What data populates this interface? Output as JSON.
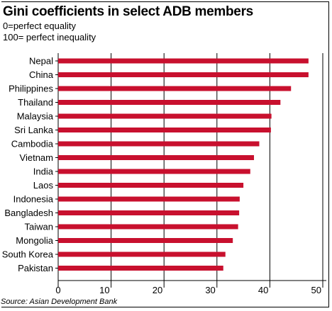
{
  "title": "Gini coefficients in select ADB members",
  "subtitle_lines": [
    "0=perfect equality",
    "100= perfect inequality"
  ],
  "source": "Source: Asian Development Bank",
  "colors": {
    "bar": "#c8102e",
    "grid": "#000000",
    "text": "#000000"
  },
  "chart_data": {
    "type": "bar",
    "orientation": "horizontal",
    "categories": [
      "Nepal",
      "China",
      "Philippines",
      "Thailand",
      "Malaysia",
      "Sri Lanka",
      "Cambodia",
      "Vietnam",
      "India",
      "Laos",
      "Indonesia",
      "Bangladesh",
      "Taiwan",
      "Mongolia",
      "South Korea",
      "Pakistan"
    ],
    "values": [
      47.3,
      47.3,
      44.0,
      42.0,
      40.3,
      40.2,
      38.0,
      37.0,
      36.3,
      35.0,
      34.3,
      34.2,
      34.0,
      33.0,
      31.6,
      31.2
    ],
    "xlim": [
      0,
      50
    ],
    "xticks": [
      0,
      10,
      20,
      30,
      40,
      50
    ],
    "grid": true
  }
}
